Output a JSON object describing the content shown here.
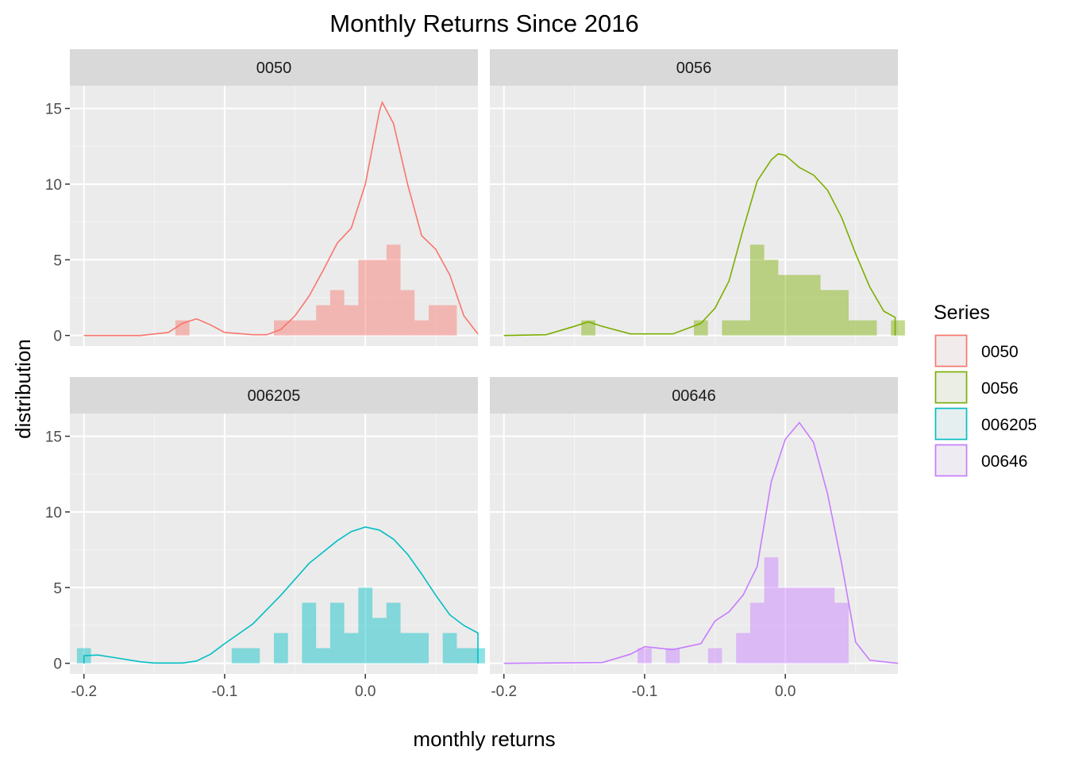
{
  "chart_data": {
    "type": "histogram-density-facet",
    "title": "Monthly Returns Since 2016",
    "xlabel": "monthly returns",
    "ylabel": "distribution",
    "xlim": [
      -0.21,
      0.08
    ],
    "ylim": [
      -0.7,
      16.5
    ],
    "x_ticks": [
      -0.2,
      -0.1,
      0.0
    ],
    "x_tick_labels": [
      "-0.2",
      "-0.1",
      "0.0"
    ],
    "y_ticks": [
      0,
      5,
      10,
      15
    ],
    "y_tick_labels": [
      "0",
      "5",
      "10",
      "15"
    ],
    "grid": true,
    "bin_width": 0.01,
    "legend": {
      "title": "Series",
      "position": "right"
    },
    "panels": [
      {
        "name": "0050",
        "color": "#F8766D",
        "hist": [
          [
            -0.13,
            1
          ],
          [
            -0.06,
            1
          ],
          [
            -0.05,
            1
          ],
          [
            -0.04,
            1
          ],
          [
            -0.03,
            2
          ],
          [
            -0.02,
            3
          ],
          [
            -0.01,
            2
          ],
          [
            0.0,
            5
          ],
          [
            0.01,
            5
          ],
          [
            0.02,
            6
          ],
          [
            0.03,
            3
          ],
          [
            0.04,
            1
          ],
          [
            0.05,
            2
          ],
          [
            0.06,
            2
          ]
        ],
        "density": [
          [
            -0.2,
            0
          ],
          [
            -0.16,
            0
          ],
          [
            -0.14,
            0.2
          ],
          [
            -0.13,
            0.8
          ],
          [
            -0.12,
            1.1
          ],
          [
            -0.11,
            0.7
          ],
          [
            -0.1,
            0.2
          ],
          [
            -0.08,
            0.05
          ],
          [
            -0.07,
            0.05
          ],
          [
            -0.06,
            0.4
          ],
          [
            -0.05,
            1.3
          ],
          [
            -0.04,
            2.6
          ],
          [
            -0.03,
            4.3
          ],
          [
            -0.02,
            6.1
          ],
          [
            -0.01,
            7.1
          ],
          [
            0.0,
            10
          ],
          [
            0.01,
            14.8
          ],
          [
            0.012,
            15.4
          ],
          [
            0.02,
            14
          ],
          [
            0.03,
            10
          ],
          [
            0.04,
            6.6
          ],
          [
            0.05,
            5.7
          ],
          [
            0.06,
            4
          ],
          [
            0.07,
            1.3
          ],
          [
            0.08,
            0.1
          ]
        ]
      },
      {
        "name": "0056",
        "color": "#7CAE00",
        "hist": [
          [
            -0.14,
            1
          ],
          [
            -0.06,
            1
          ],
          [
            -0.04,
            1
          ],
          [
            -0.03,
            1
          ],
          [
            -0.02,
            6
          ],
          [
            -0.01,
            5
          ],
          [
            0.0,
            4
          ],
          [
            0.01,
            4
          ],
          [
            0.02,
            4
          ],
          [
            0.03,
            3
          ],
          [
            0.04,
            3
          ],
          [
            0.05,
            1
          ],
          [
            0.06,
            1
          ],
          [
            0.08,
            1
          ]
        ],
        "density": [
          [
            -0.2,
            0
          ],
          [
            -0.17,
            0.05
          ],
          [
            -0.15,
            0.6
          ],
          [
            -0.14,
            0.9
          ],
          [
            -0.13,
            0.6
          ],
          [
            -0.11,
            0.1
          ],
          [
            -0.08,
            0.1
          ],
          [
            -0.06,
            0.8
          ],
          [
            -0.05,
            1.8
          ],
          [
            -0.04,
            3.6
          ],
          [
            -0.03,
            7
          ],
          [
            -0.02,
            10.2
          ],
          [
            -0.01,
            11.6
          ],
          [
            -0.005,
            12
          ],
          [
            0.0,
            11.9
          ],
          [
            0.01,
            11.1
          ],
          [
            0.02,
            10.6
          ],
          [
            0.03,
            9.6
          ],
          [
            0.04,
            7.8
          ],
          [
            0.05,
            5.4
          ],
          [
            0.06,
            3.2
          ],
          [
            0.07,
            1.6
          ],
          [
            0.078,
            1.2
          ],
          [
            0.078,
            0
          ]
        ]
      },
      {
        "name": "006205",
        "color": "#00BFC4",
        "hist": [
          [
            -0.2,
            1
          ],
          [
            -0.09,
            1
          ],
          [
            -0.08,
            1
          ],
          [
            -0.06,
            2
          ],
          [
            -0.04,
            4
          ],
          [
            -0.03,
            1
          ],
          [
            -0.02,
            4
          ],
          [
            -0.01,
            2
          ],
          [
            0.0,
            5
          ],
          [
            0.01,
            3
          ],
          [
            0.02,
            4
          ],
          [
            0.03,
            2
          ],
          [
            0.04,
            2
          ],
          [
            0.06,
            2
          ],
          [
            0.07,
            1
          ],
          [
            0.08,
            1
          ]
        ],
        "density": [
          [
            -0.2,
            0
          ],
          [
            -0.2,
            0.5
          ],
          [
            -0.19,
            0.55
          ],
          [
            -0.18,
            0.4
          ],
          [
            -0.16,
            0.1
          ],
          [
            -0.15,
            0.02
          ],
          [
            -0.13,
            0.02
          ],
          [
            -0.12,
            0.15
          ],
          [
            -0.11,
            0.6
          ],
          [
            -0.1,
            1.3
          ],
          [
            -0.08,
            2.6
          ],
          [
            -0.06,
            4.5
          ],
          [
            -0.04,
            6.6
          ],
          [
            -0.02,
            8.1
          ],
          [
            -0.01,
            8.7
          ],
          [
            0.0,
            9
          ],
          [
            0.01,
            8.8
          ],
          [
            0.02,
            8.2
          ],
          [
            0.03,
            7.2
          ],
          [
            0.04,
            5.9
          ],
          [
            0.05,
            4.5
          ],
          [
            0.06,
            3.2
          ],
          [
            0.07,
            2.5
          ],
          [
            0.08,
            2
          ],
          [
            0.08,
            0
          ]
        ]
      },
      {
        "name": "00646",
        "color": "#C77CFF",
        "hist": [
          [
            -0.1,
            1
          ],
          [
            -0.08,
            1
          ],
          [
            -0.05,
            1
          ],
          [
            -0.03,
            2
          ],
          [
            -0.02,
            4
          ],
          [
            -0.01,
            7
          ],
          [
            0.0,
            5
          ],
          [
            0.01,
            5
          ],
          [
            0.02,
            5
          ],
          [
            0.03,
            5
          ],
          [
            0.04,
            4
          ]
        ],
        "density": [
          [
            -0.2,
            0
          ],
          [
            -0.13,
            0.05
          ],
          [
            -0.11,
            0.6
          ],
          [
            -0.1,
            1.1
          ],
          [
            -0.09,
            1
          ],
          [
            -0.08,
            0.9
          ],
          [
            -0.07,
            1.1
          ],
          [
            -0.06,
            1.3
          ],
          [
            -0.05,
            2.8
          ],
          [
            -0.04,
            3.4
          ],
          [
            -0.03,
            4.5
          ],
          [
            -0.02,
            6.4
          ],
          [
            -0.01,
            12
          ],
          [
            0.0,
            14.8
          ],
          [
            0.01,
            15.9
          ],
          [
            0.02,
            14.6
          ],
          [
            0.03,
            11.2
          ],
          [
            0.04,
            6.6
          ],
          [
            0.05,
            1.4
          ],
          [
            0.06,
            0.2
          ],
          [
            0.08,
            0
          ]
        ]
      }
    ]
  }
}
